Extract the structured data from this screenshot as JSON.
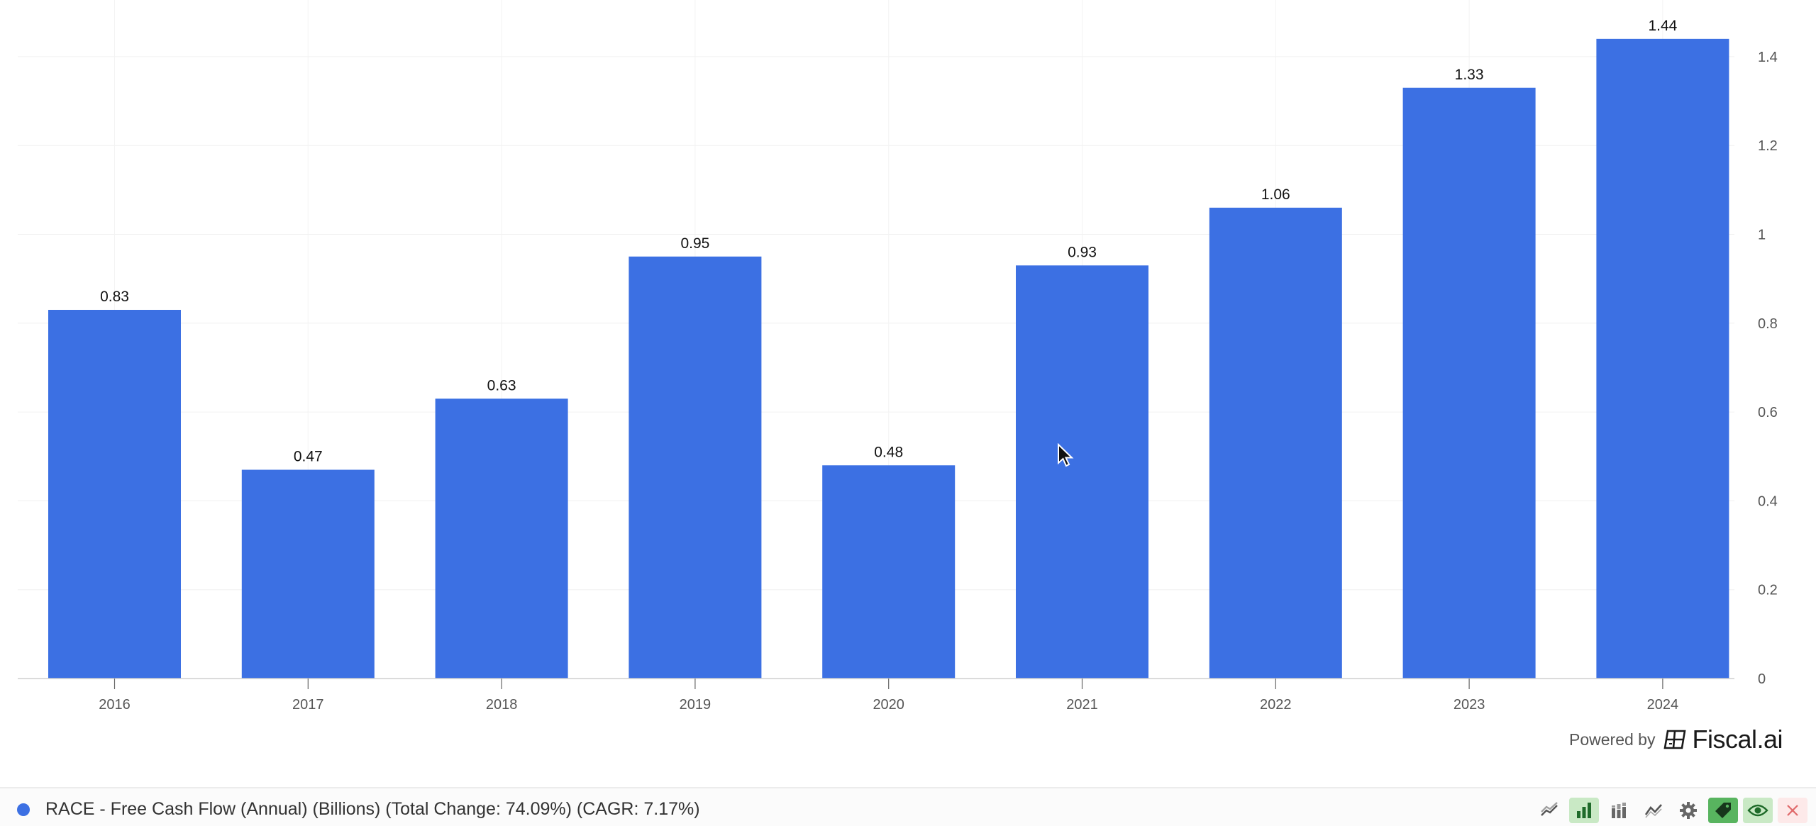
{
  "chart_data": {
    "type": "bar",
    "categories": [
      "2016",
      "2017",
      "2018",
      "2019",
      "2020",
      "2021",
      "2022",
      "2023",
      "2024"
    ],
    "values": [
      0.83,
      0.47,
      0.63,
      0.95,
      0.48,
      0.93,
      1.06,
      1.33,
      1.44
    ],
    "data_labels": [
      "0.83",
      "0.47",
      "0.63",
      "0.95",
      "0.48",
      "0.93",
      "1.06",
      "1.33",
      "1.44"
    ],
    "y_ticks": [
      0,
      0.2,
      0.4,
      0.6,
      0.8,
      1,
      1.2,
      1.4
    ],
    "y_tick_labels": [
      "0",
      "0.2",
      "0.4",
      "0.6",
      "0.8",
      "1",
      "1.2",
      "1.4"
    ],
    "ylim": [
      0,
      1.5
    ],
    "y_axis_position": "right",
    "grid": true,
    "bar_color": "#3c70e3",
    "series": [
      {
        "name": "RACE - Free Cash Flow (Annual) (Billions) (Total Change: 74.09%) (CAGR: 7.17%)",
        "color": "#3c70e3"
      }
    ]
  },
  "branding": {
    "powered_by": "Powered by",
    "brand_name": "Fiscal.ai"
  },
  "legend": {
    "text": "RACE - Free Cash Flow (Annual) (Billions) (Total Change: 74.09%) (CAGR: 7.17%)",
    "dot_color": "#3c70e3"
  },
  "toolbar": {
    "buttons": [
      {
        "icon": "line-chart-icon",
        "state": "inactive"
      },
      {
        "icon": "bar-chart-icon",
        "state": "active"
      },
      {
        "icon": "stacked-bar-icon",
        "state": "inactive"
      },
      {
        "icon": "trend-icon",
        "state": "inactive"
      },
      {
        "icon": "gear-icon",
        "state": "inactive"
      },
      {
        "icon": "tag-icon",
        "state": "active"
      },
      {
        "icon": "eye-icon",
        "state": "active"
      },
      {
        "icon": "close-icon",
        "state": "inactive"
      }
    ]
  }
}
